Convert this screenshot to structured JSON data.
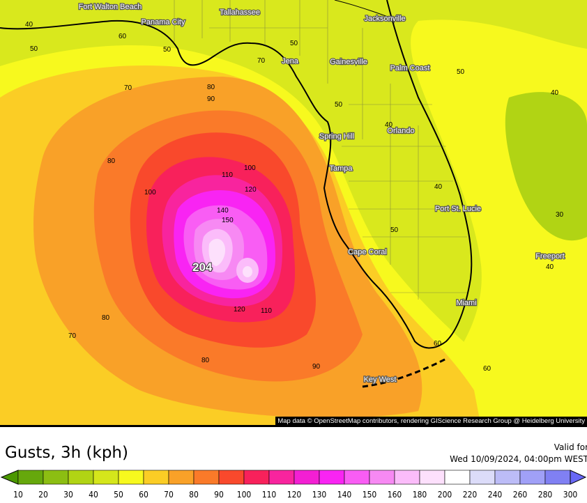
{
  "map": {
    "cities": [
      {
        "name": "Fort Walton Beach"
      },
      {
        "name": "Panama City"
      },
      {
        "name": "Tallahassee"
      },
      {
        "name": "Jacksonville"
      },
      {
        "name": "Jena"
      },
      {
        "name": "Gainesville"
      },
      {
        "name": "Palm Coast"
      },
      {
        "name": "Spring Hill"
      },
      {
        "name": "Orlando"
      },
      {
        "name": "Tampa"
      },
      {
        "name": "Port St. Lucie"
      },
      {
        "name": "Cape Coral"
      },
      {
        "name": "Freeport"
      },
      {
        "name": "Miami"
      },
      {
        "name": "Key West"
      }
    ],
    "contour_labels": [
      "40",
      "60",
      "50",
      "50",
      "70",
      "50",
      "50",
      "80",
      "90",
      "70",
      "50",
      "40",
      "40",
      "80",
      "100",
      "110",
      "100",
      "120",
      "40",
      "100",
      "30",
      "140",
      "150",
      "50",
      "80",
      "120",
      "110",
      "70",
      "80",
      "90",
      "60",
      "60",
      "40"
    ],
    "peak_value": "204",
    "attribution": "Map data © OpenStreetMap contributors, rendering GIScience Research Group @ Heidelberg University"
  },
  "legend": {
    "title": "Gusts, 3h (kph)",
    "valid_label": "Valid for",
    "valid_time": "Wed 10/09/2024, 04:00pm WEST",
    "ticks": [
      "10",
      "20",
      "30",
      "40",
      "50",
      "60",
      "70",
      "80",
      "90",
      "100",
      "110",
      "120",
      "130",
      "140",
      "150",
      "160",
      "180",
      "200",
      "220",
      "240",
      "260",
      "280",
      "300"
    ],
    "colors": [
      "#4b9800",
      "#66a80c",
      "#8cbe12",
      "#b1d414",
      "#d5e61b",
      "#f7f91e",
      "#fbcd25",
      "#f9a128",
      "#fa7a29",
      "#f9492c",
      "#f8215b",
      "#f8249e",
      "#f31fd3",
      "#f924f3",
      "#f95df4",
      "#f789f3",
      "#fbbcfa",
      "#fde0fc",
      "#ffffff",
      "#dcdcf9",
      "#bcbcf7",
      "#a0a0f7",
      "#8080f3",
      "#6868f6"
    ]
  }
}
